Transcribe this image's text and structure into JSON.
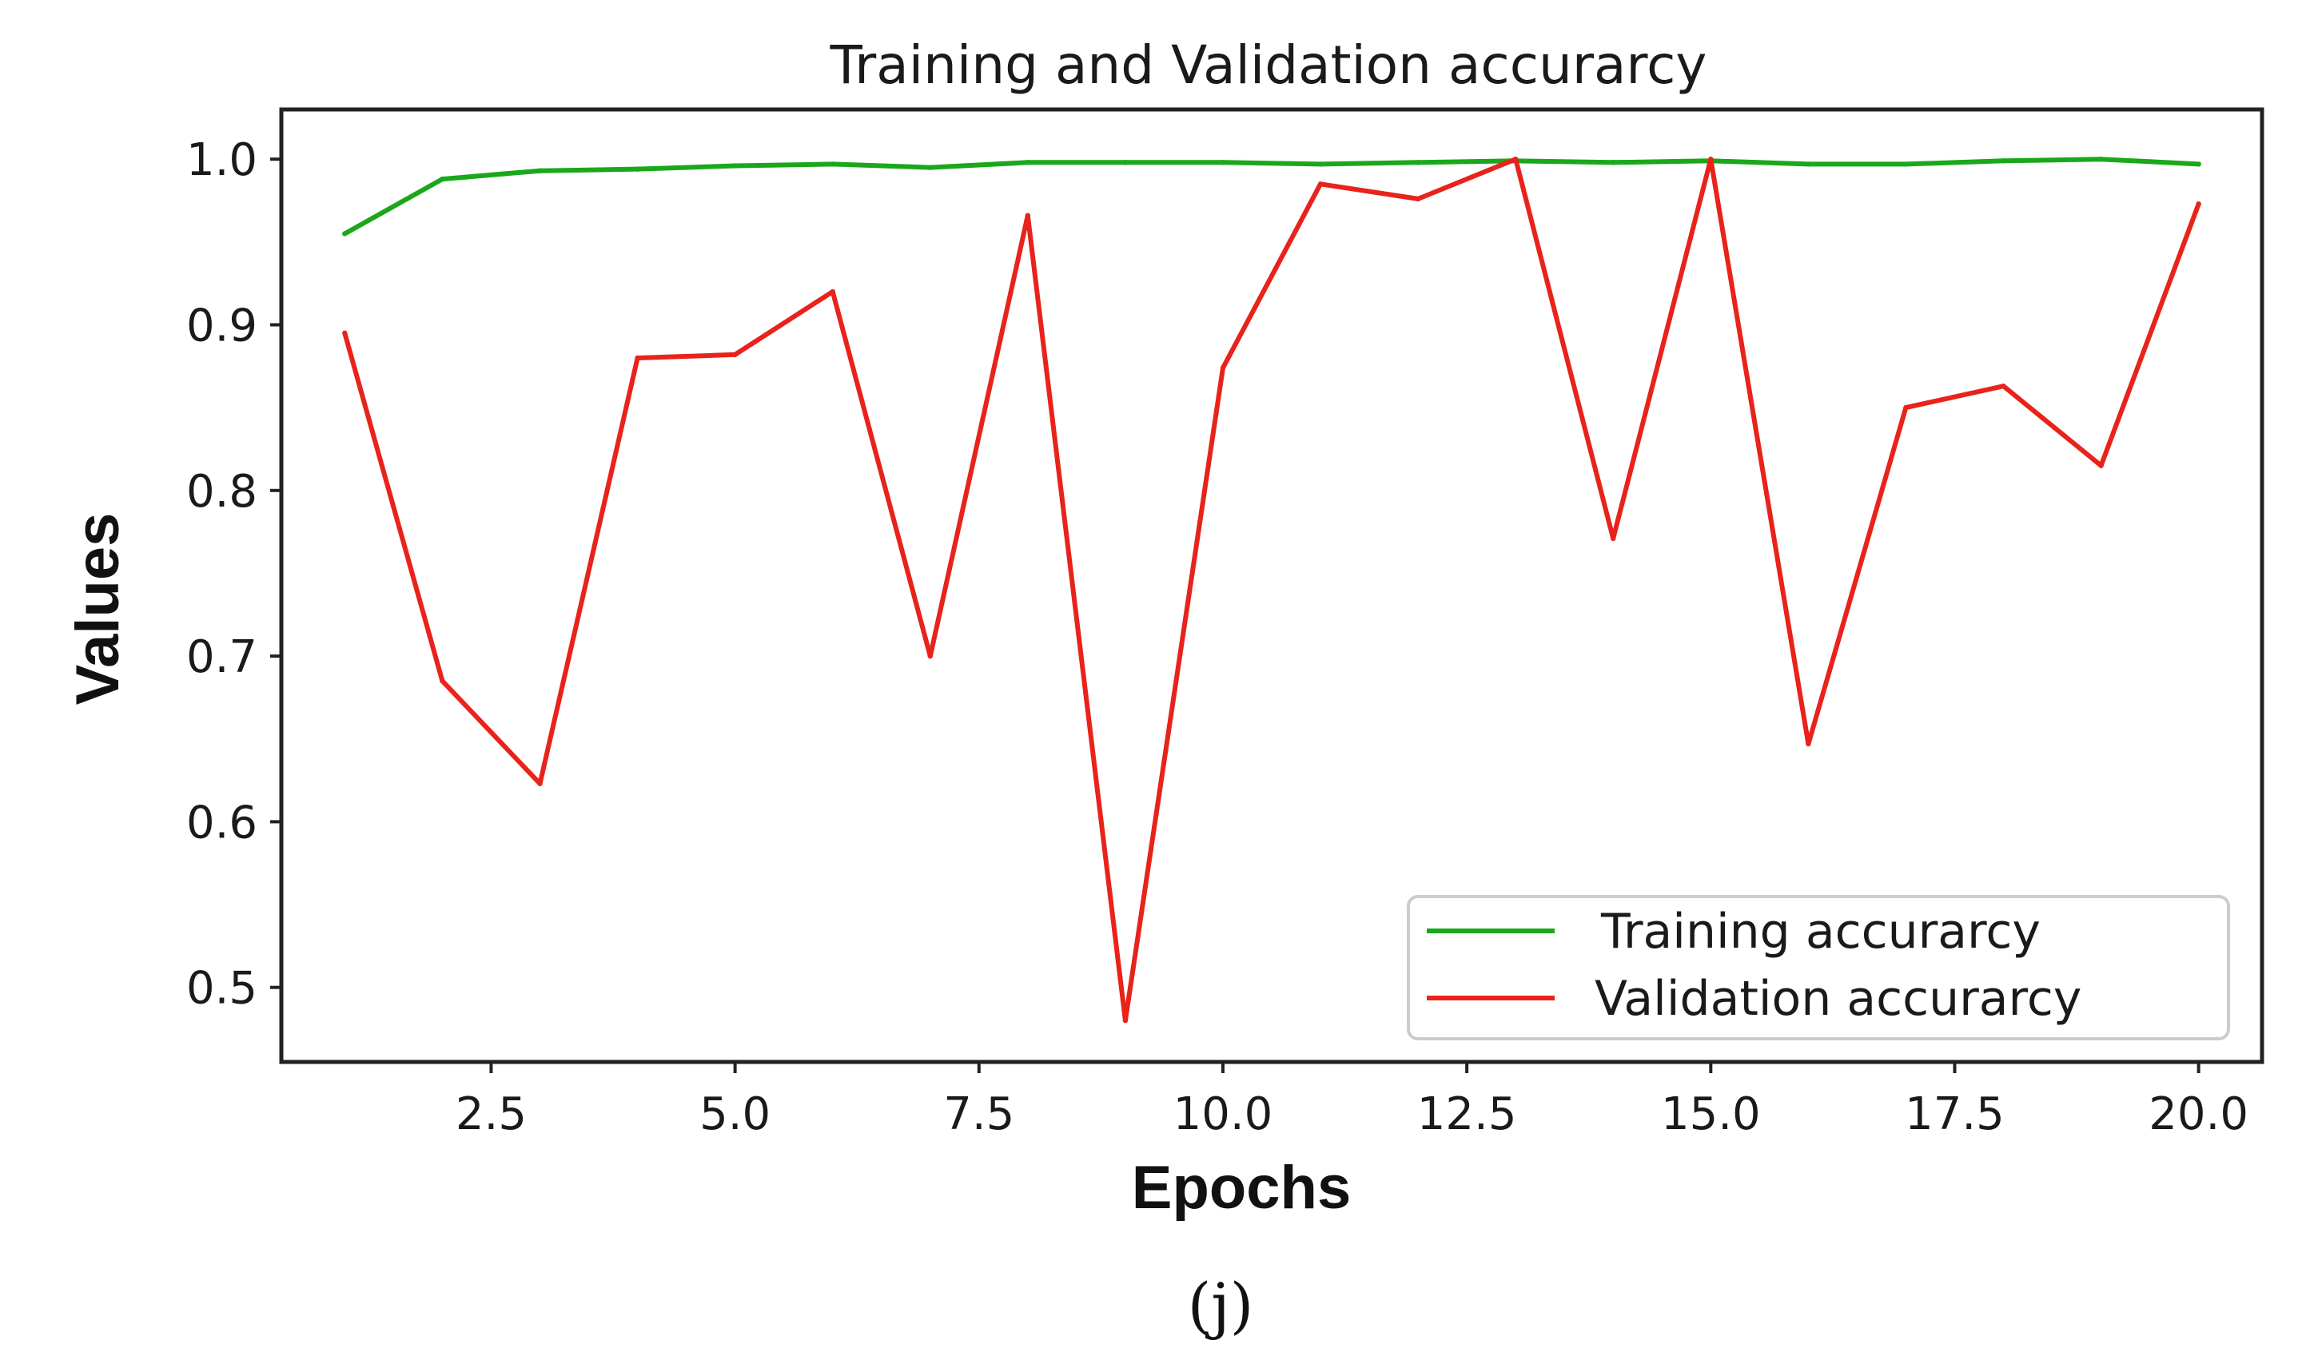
{
  "chart_data": {
    "type": "line",
    "title": "Training and Validation accurarcy",
    "xlabel": "Epochs",
    "ylabel": "Values",
    "xlim": [
      0.35,
      20.65
    ],
    "ylim": [
      0.455,
      1.03
    ],
    "x_ticks": [
      2.5,
      5.0,
      7.5,
      10.0,
      12.5,
      15.0,
      17.5,
      20.0
    ],
    "x_tick_labels": [
      "2.5",
      "5.0",
      "7.5",
      "10.0",
      "12.5",
      "15.0",
      "17.5",
      "20.0"
    ],
    "y_ticks": [
      0.5,
      0.6,
      0.7,
      0.8,
      0.9,
      1.0
    ],
    "y_tick_labels": [
      "0.5",
      "0.6",
      "0.7",
      "0.8",
      "0.9",
      "1.0"
    ],
    "grid": false,
    "legend_position": "lower-right",
    "x": [
      1,
      2,
      3,
      4,
      5,
      6,
      7,
      8,
      9,
      10,
      11,
      12,
      13,
      14,
      15,
      16,
      17,
      18,
      19,
      20
    ],
    "series": [
      {
        "name": "Training accurarcy",
        "color": "#1aa81a",
        "values": [
          0.955,
          0.988,
          0.993,
          0.994,
          0.996,
          0.997,
          0.995,
          0.998,
          0.998,
          0.998,
          0.997,
          0.998,
          0.999,
          0.998,
          0.999,
          0.997,
          0.997,
          0.999,
          1.0,
          0.997
        ]
      },
      {
        "name": "Validation accurarcy",
        "color": "#e8231b",
        "values": [
          0.895,
          0.685,
          0.623,
          0.88,
          0.882,
          0.92,
          0.7,
          0.966,
          0.48,
          0.874,
          0.985,
          0.976,
          1.0,
          0.771,
          1.0,
          0.647,
          0.85,
          0.863,
          0.815,
          0.973
        ]
      }
    ]
  },
  "caption": "(j)"
}
